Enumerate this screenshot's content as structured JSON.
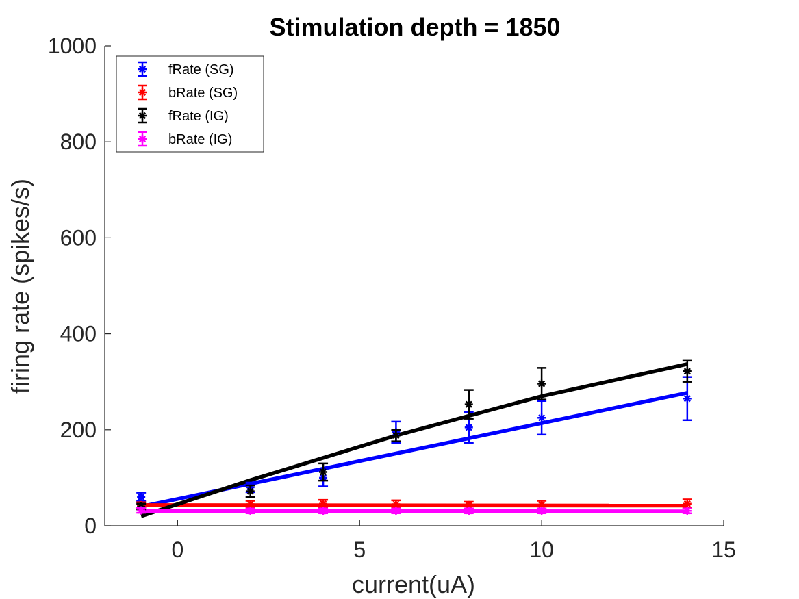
{
  "chart_data": {
    "type": "scatter",
    "title": "Stimulation depth = 1850",
    "xlabel": "current(uA)",
    "ylabel": "firing rate (spikes/s)",
    "xlim": [
      -2,
      15
    ],
    "ylim": [
      0,
      1000
    ],
    "xticks": [
      0,
      5,
      10,
      15
    ],
    "yticks": [
      0,
      200,
      400,
      600,
      800,
      1000
    ],
    "grid": false,
    "legend_position": "top-left",
    "x": [
      -1,
      2,
      4,
      6,
      8,
      10,
      14
    ],
    "series": [
      {
        "name": "fRate (SG)",
        "color": "#0000ff",
        "values": [
          60,
          80,
          100,
          195,
          205,
          225,
          265
        ],
        "errors": [
          9,
          10,
          18,
          22,
          32,
          35,
          45
        ],
        "fit": [
          [
            -1,
            40
          ],
          [
            14,
            277
          ]
        ]
      },
      {
        "name": "bRate (SG)",
        "color": "#ff0000",
        "values": [
          43,
          45,
          46,
          45,
          43,
          44,
          46
        ],
        "errors": [
          6,
          7,
          8,
          8,
          7,
          8,
          9
        ],
        "fit": [
          [
            -1,
            43
          ],
          [
            14,
            42
          ]
        ]
      },
      {
        "name": "fRate (IG)",
        "color": "#000000",
        "values": [
          40,
          72,
          112,
          188,
          253,
          296,
          322
        ],
        "errors": [
          6,
          12,
          18,
          12,
          30,
          33,
          22
        ],
        "fit": [
          [
            -1,
            20
          ],
          [
            2,
            95
          ],
          [
            6,
            188
          ],
          [
            10,
            270
          ],
          [
            14,
            337
          ]
        ]
      },
      {
        "name": "bRate (IG)",
        "color": "#ff00ff",
        "values": [
          32,
          31,
          31,
          31,
          31,
          31,
          31
        ],
        "errors": [
          5,
          5,
          5,
          5,
          5,
          5,
          5
        ],
        "fit": [
          [
            -1,
            31
          ],
          [
            14,
            30
          ]
        ]
      }
    ]
  }
}
